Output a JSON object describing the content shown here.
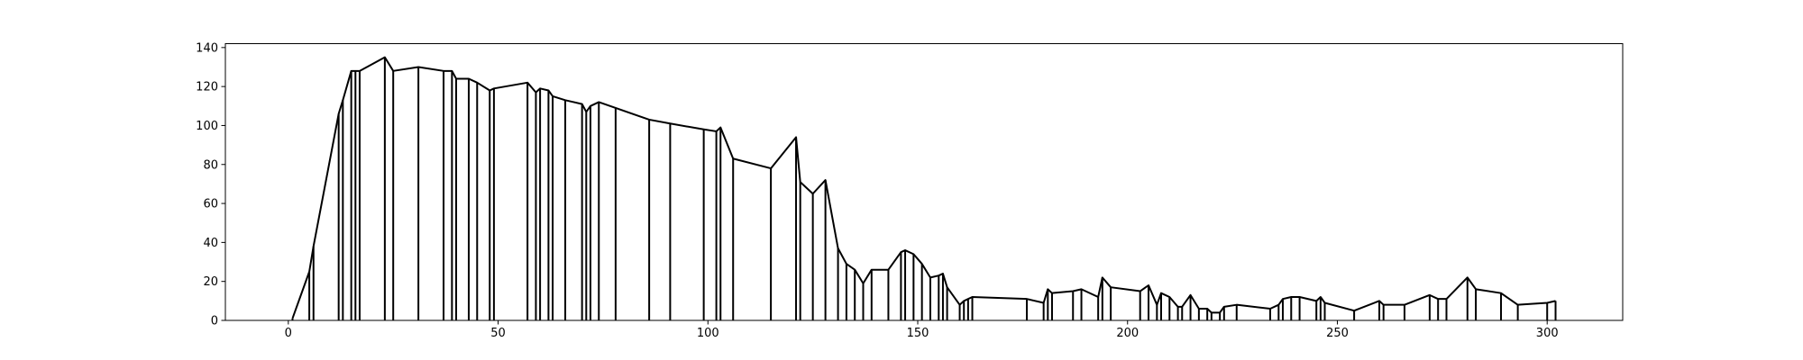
{
  "chart_data": {
    "type": "line",
    "drop_lines": true,
    "color": "#000000",
    "x": [
      1,
      5,
      6,
      12,
      13,
      15,
      16,
      17,
      23,
      25,
      31,
      37,
      39,
      40,
      43,
      45,
      48,
      49,
      57,
      59,
      60,
      62,
      63,
      66,
      70,
      71,
      72,
      74,
      78,
      86,
      91,
      99,
      102,
      103,
      106,
      115,
      121,
      122,
      125,
      128,
      131,
      133,
      135,
      137,
      139,
      143,
      146,
      147,
      149,
      151,
      153,
      155,
      156,
      157,
      160,
      161,
      162,
      163,
      176,
      180,
      181,
      182,
      187,
      189,
      193,
      194,
      196,
      203,
      205,
      207,
      208,
      210,
      212,
      213,
      215,
      217,
      219,
      220,
      222,
      223,
      226,
      234,
      236,
      237,
      239,
      241,
      245,
      246,
      247,
      254,
      260,
      261,
      266,
      272,
      274,
      276,
      281,
      283,
      289,
      293,
      300,
      302
    ],
    "series": [
      {
        "values": [
          1,
          25,
          38,
          106,
          113,
          128,
          128,
          128,
          135,
          128,
          130,
          128,
          128,
          124,
          124,
          122,
          118,
          119,
          122,
          117,
          119,
          118,
          115,
          113,
          111,
          107,
          110,
          112,
          109,
          103,
          101,
          98,
          97,
          99,
          83,
          78,
          94,
          71,
          65,
          72,
          37,
          29,
          26,
          19,
          26,
          26,
          35,
          36,
          34,
          29,
          22,
          23,
          24,
          17,
          8,
          10,
          11,
          12,
          11,
          9,
          16,
          14,
          15,
          16,
          12,
          22,
          17,
          15,
          18,
          8,
          14,
          12,
          7,
          7,
          13,
          6,
          6,
          4,
          4,
          7,
          8,
          6,
          8,
          11,
          12,
          12,
          10,
          12,
          9,
          5,
          10,
          8,
          8,
          13,
          11,
          11,
          22,
          16,
          14,
          8,
          9,
          10
        ]
      }
    ],
    "xlim": [
      -15,
      318
    ],
    "ylim": [
      0,
      142
    ],
    "xticks": [
      0,
      50,
      100,
      150,
      200,
      250,
      300
    ],
    "yticks": [
      0,
      20,
      40,
      60,
      80,
      100,
      120,
      140
    ]
  }
}
